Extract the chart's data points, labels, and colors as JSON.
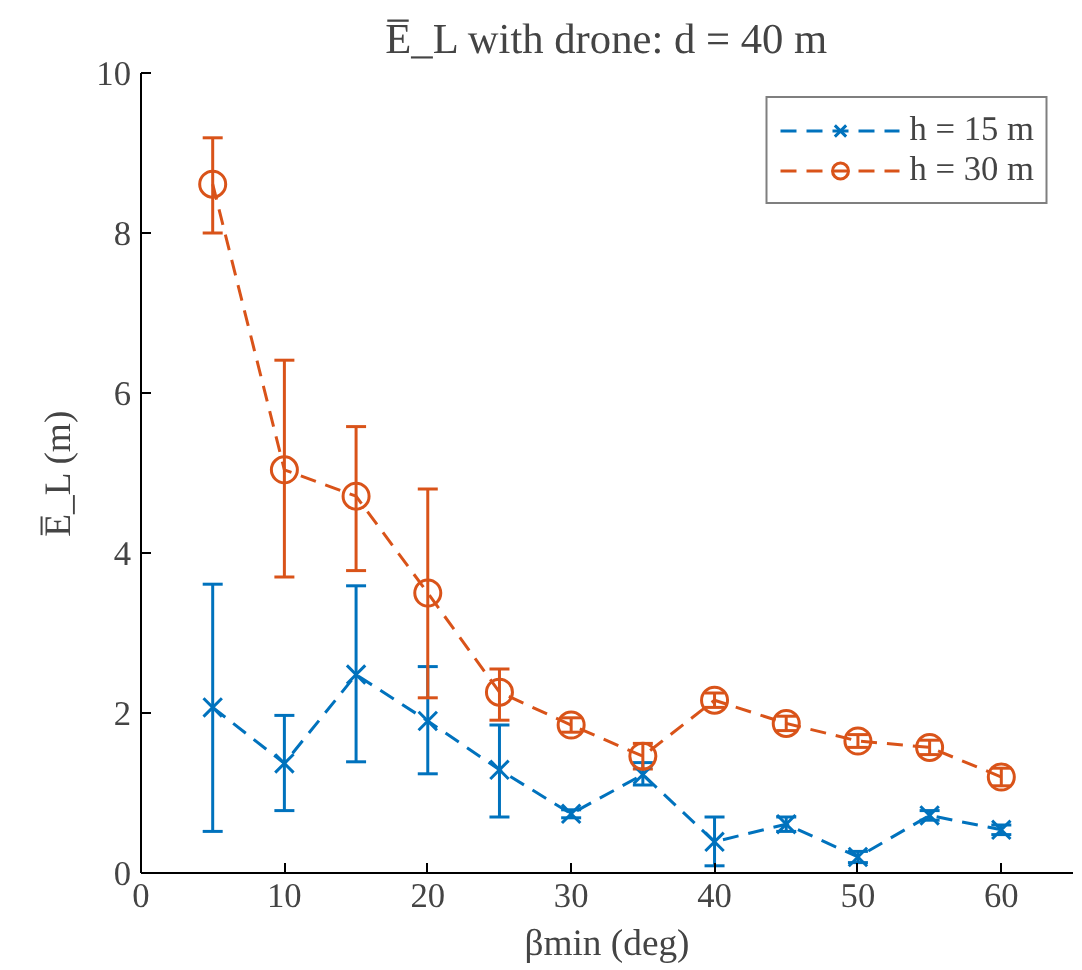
{
  "chart_data": {
    "type": "line",
    "title": "E̅_L with drone: d = 40 m",
    "xlabel": "βmin (deg)",
    "ylabel": "E̅_L (m)",
    "x": [
      5,
      10,
      15,
      20,
      25,
      30,
      35,
      40,
      45,
      50,
      55,
      60
    ],
    "series": [
      {
        "name": "h = 15 m",
        "color": "#0072bd",
        "marker": "cross",
        "values": [
          2.07,
          1.37,
          2.48,
          1.9,
          1.29,
          0.74,
          1.23,
          0.39,
          0.61,
          0.2,
          0.72,
          0.54
        ],
        "errors": [
          [
            0.52,
            3.61
          ],
          [
            0.78,
            1.97
          ],
          [
            1.39,
            3.59
          ],
          [
            1.24,
            2.58
          ],
          [
            0.7,
            1.85
          ],
          [
            0.69,
            0.79
          ],
          [
            1.1,
            1.38
          ],
          [
            0.09,
            0.7
          ],
          [
            0.52,
            0.7
          ],
          [
            0.13,
            0.27
          ],
          [
            0.66,
            0.78
          ],
          [
            0.48,
            0.6
          ]
        ]
      },
      {
        "name": "h = 30 m",
        "color": "#d95319",
        "marker": "circle",
        "values": [
          8.61,
          5.04,
          4.71,
          3.5,
          2.26,
          1.85,
          1.46,
          2.16,
          1.87,
          1.65,
          1.57,
          1.2
        ],
        "errors": [
          [
            8.0,
            9.19
          ],
          [
            3.7,
            6.41
          ],
          [
            3.78,
            5.58
          ],
          [
            2.19,
            4.8
          ],
          [
            1.91,
            2.55
          ],
          [
            1.76,
            1.94
          ],
          [
            1.3,
            1.62
          ],
          [
            2.07,
            2.25
          ],
          [
            1.78,
            1.96
          ],
          [
            1.57,
            1.73
          ],
          [
            1.48,
            1.66
          ],
          [
            1.09,
            1.31
          ]
        ]
      }
    ],
    "xlim": [
      0,
      65
    ],
    "ylim": [
      0,
      10
    ],
    "xticks": [
      0,
      10,
      20,
      30,
      40,
      50,
      60
    ],
    "yticks": [
      0,
      2,
      4,
      6,
      8,
      10
    ],
    "legend": "top right",
    "line_style": "dashed",
    "grid": false
  }
}
